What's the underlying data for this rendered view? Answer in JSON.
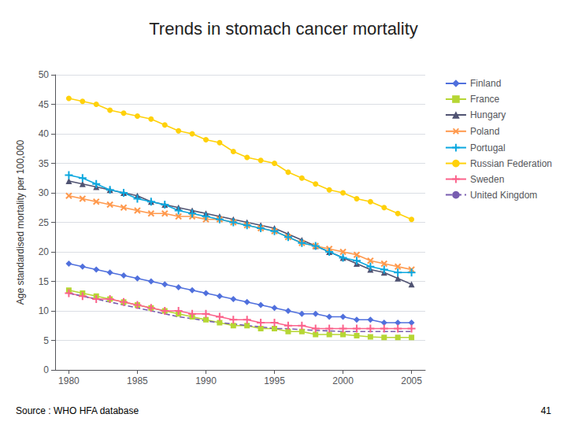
{
  "chart_data": {
    "type": "line",
    "title": "Trends in stomach cancer mortality",
    "ylabel": "Age standardised mortality per 100,000",
    "annotations": [
      "Source : WHO HFA database",
      "41"
    ],
    "x": [
      1980,
      1981,
      1982,
      1983,
      1984,
      1985,
      1986,
      1987,
      1988,
      1989,
      1990,
      1991,
      1992,
      1993,
      1994,
      1995,
      1996,
      1997,
      1998,
      1999,
      2000,
      2001,
      2002,
      2003,
      2004,
      2005
    ],
    "series": [
      {
        "name": "Finland",
        "marker": "diamond",
        "line_style": "solid",
        "values": [
          18.0,
          17.5,
          17.0,
          16.5,
          16.0,
          15.5,
          15.0,
          14.5,
          14.0,
          13.5,
          13.0,
          12.5,
          12.0,
          11.5,
          11.0,
          10.5,
          10.0,
          9.5,
          9.5,
          9.0,
          9.0,
          8.5,
          8.5,
          8.0,
          8.0,
          8.0
        ]
      },
      {
        "name": "France",
        "marker": "square",
        "line_style": "solid",
        "values": [
          13.5,
          13.0,
          12.5,
          12.0,
          11.5,
          11.0,
          10.5,
          10.0,
          9.5,
          9.0,
          8.5,
          8.0,
          7.5,
          7.5,
          7.0,
          7.0,
          6.5,
          6.5,
          6.0,
          6.0,
          6.0,
          5.8,
          5.6,
          5.5,
          5.5,
          5.5
        ]
      },
      {
        "name": "Hungary",
        "marker": "triangle",
        "line_style": "solid",
        "values": [
          32.0,
          31.5,
          31.0,
          30.5,
          30.0,
          29.5,
          28.5,
          28.0,
          27.5,
          27.0,
          26.5,
          26.0,
          25.5,
          25.0,
          24.5,
          24.0,
          23.0,
          22.0,
          21.0,
          20.0,
          19.0,
          18.0,
          17.0,
          16.5,
          15.5,
          14.5
        ]
      },
      {
        "name": "Poland",
        "marker": "x",
        "line_style": "solid",
        "values": [
          29.5,
          29.0,
          28.5,
          28.0,
          27.5,
          27.0,
          26.5,
          26.5,
          26.0,
          26.0,
          25.5,
          25.5,
          25.0,
          24.5,
          24.0,
          23.5,
          22.5,
          21.5,
          21.0,
          20.5,
          20.0,
          19.5,
          18.5,
          18.0,
          17.5,
          17.0
        ]
      },
      {
        "name": "Portugal",
        "marker": "plus",
        "line_style": "solid",
        "values": [
          33.0,
          32.5,
          31.5,
          30.5,
          30.0,
          29.0,
          28.5,
          28.0,
          27.0,
          26.5,
          26.0,
          25.5,
          25.0,
          24.5,
          24.0,
          23.5,
          22.5,
          21.5,
          21.0,
          20.0,
          19.0,
          18.5,
          17.5,
          17.0,
          16.5,
          16.5
        ]
      },
      {
        "name": "Russian Federation",
        "marker": "circle",
        "line_style": "solid",
        "values": [
          46.0,
          45.5,
          45.0,
          44.0,
          43.5,
          43.0,
          42.5,
          41.5,
          40.5,
          40.0,
          39.0,
          38.5,
          37.0,
          36.0,
          35.5,
          35.0,
          33.5,
          32.5,
          31.5,
          30.5,
          30.0,
          29.0,
          28.5,
          27.5,
          26.5,
          25.5
        ]
      },
      {
        "name": "Sweden",
        "marker": "plus",
        "line_style": "solid",
        "values": [
          13.0,
          12.5,
          12.0,
          12.0,
          11.5,
          11.0,
          10.5,
          10.0,
          10.0,
          9.5,
          9.5,
          9.0,
          8.5,
          8.5,
          8.0,
          8.0,
          7.5,
          7.5,
          7.0,
          7.0,
          7.0,
          7.0,
          7.0,
          7.0,
          7.0,
          7.0
        ]
      },
      {
        "name": "United Kingdom",
        "marker": "none",
        "line_style": "dashed",
        "values": [
          13.0,
          12.5,
          12.0,
          11.5,
          11.0,
          10.5,
          10.0,
          9.5,
          9.0,
          8.7,
          8.3,
          8.0,
          7.8,
          7.5,
          7.3,
          7.0,
          7.0,
          6.8,
          6.7,
          6.6,
          6.5,
          6.5,
          6.5,
          6.5,
          6.5,
          6.5
        ]
      }
    ],
    "xlim": [
      1979,
      2006
    ],
    "xticks": [
      1980,
      1985,
      1990,
      1995,
      2000,
      2005
    ],
    "ylim": [
      0,
      50
    ],
    "yticks": [
      0,
      5,
      10,
      15,
      20,
      25,
      30,
      35,
      40,
      45,
      50
    ],
    "grid": true,
    "legend": "right"
  }
}
